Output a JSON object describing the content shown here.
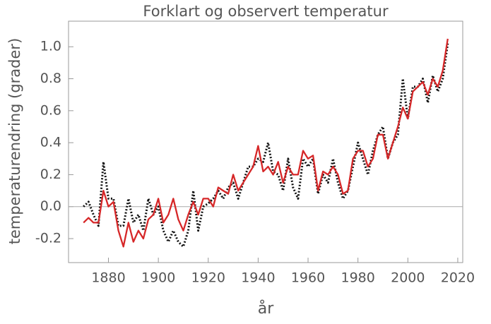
{
  "chart_data": {
    "type": "line",
    "title": "Forklart og observert temperatur",
    "x_label": "år",
    "y_label": "temperaturendring (grader)",
    "x": [
      1870,
      1872,
      1874,
      1876,
      1878,
      1880,
      1882,
      1884,
      1886,
      1888,
      1890,
      1892,
      1894,
      1896,
      1898,
      1900,
      1902,
      1904,
      1906,
      1908,
      1910,
      1912,
      1914,
      1916,
      1918,
      1920,
      1922,
      1924,
      1926,
      1928,
      1930,
      1932,
      1934,
      1936,
      1938,
      1940,
      1942,
      1944,
      1946,
      1948,
      1950,
      1952,
      1954,
      1956,
      1958,
      1960,
      1962,
      1964,
      1966,
      1968,
      1970,
      1972,
      1974,
      1976,
      1978,
      1980,
      1982,
      1984,
      1986,
      1988,
      1990,
      1992,
      1994,
      1996,
      1998,
      2000,
      2002,
      2004,
      2006,
      2008,
      2010,
      2012,
      2014,
      2016
    ],
    "series": [
      {
        "color": "#d62728",
        "style": "solid",
        "values": [
          -0.1,
          -0.07,
          -0.1,
          -0.1,
          0.1,
          0.0,
          0.03,
          -0.15,
          -0.25,
          -0.1,
          -0.22,
          -0.15,
          -0.2,
          -0.08,
          -0.05,
          0.05,
          -0.1,
          -0.05,
          0.05,
          -0.08,
          -0.15,
          -0.05,
          0.03,
          -0.05,
          0.05,
          0.05,
          0.0,
          0.12,
          0.1,
          0.08,
          0.2,
          0.1,
          0.15,
          0.2,
          0.25,
          0.38,
          0.22,
          0.25,
          0.2,
          0.28,
          0.15,
          0.25,
          0.2,
          0.2,
          0.35,
          0.3,
          0.32,
          0.1,
          0.22,
          0.2,
          0.25,
          0.2,
          0.08,
          0.1,
          0.3,
          0.35,
          0.35,
          0.25,
          0.3,
          0.45,
          0.45,
          0.3,
          0.4,
          0.5,
          0.62,
          0.55,
          0.72,
          0.75,
          0.78,
          0.7,
          0.8,
          0.75,
          0.85,
          1.05
        ]
      },
      {
        "color": "#111111",
        "style": "dotted",
        "values": [
          0.0,
          0.03,
          -0.05,
          -0.12,
          0.28,
          0.05,
          0.05,
          -0.12,
          -0.12,
          0.05,
          -0.1,
          -0.05,
          -0.15,
          0.05,
          -0.05,
          0.0,
          -0.15,
          -0.22,
          -0.15,
          -0.22,
          -0.25,
          -0.15,
          0.1,
          -0.15,
          0.0,
          0.02,
          0.05,
          0.1,
          0.05,
          0.12,
          0.15,
          0.05,
          0.15,
          0.25,
          0.25,
          0.3,
          0.28,
          0.4,
          0.22,
          0.2,
          0.1,
          0.3,
          0.12,
          0.05,
          0.3,
          0.25,
          0.3,
          0.08,
          0.2,
          0.15,
          0.3,
          0.15,
          0.05,
          0.1,
          0.25,
          0.4,
          0.3,
          0.2,
          0.35,
          0.45,
          0.5,
          0.3,
          0.4,
          0.45,
          0.8,
          0.55,
          0.75,
          0.75,
          0.8,
          0.65,
          0.82,
          0.72,
          0.8,
          1.02
        ]
      }
    ],
    "xlim": [
      1864,
      2022
    ],
    "ylim": [
      -0.35,
      1.16
    ],
    "xticks": [
      1880,
      1900,
      1920,
      1940,
      1960,
      1980,
      2000,
      2020
    ],
    "yticks": [
      -0.2,
      {
        "value": 0,
        "label": "0.0"
      },
      0.2,
      0.4,
      0.6,
      0.8,
      {
        "value": 1,
        "label": "1.0"
      }
    ],
    "zero_line": true
  }
}
